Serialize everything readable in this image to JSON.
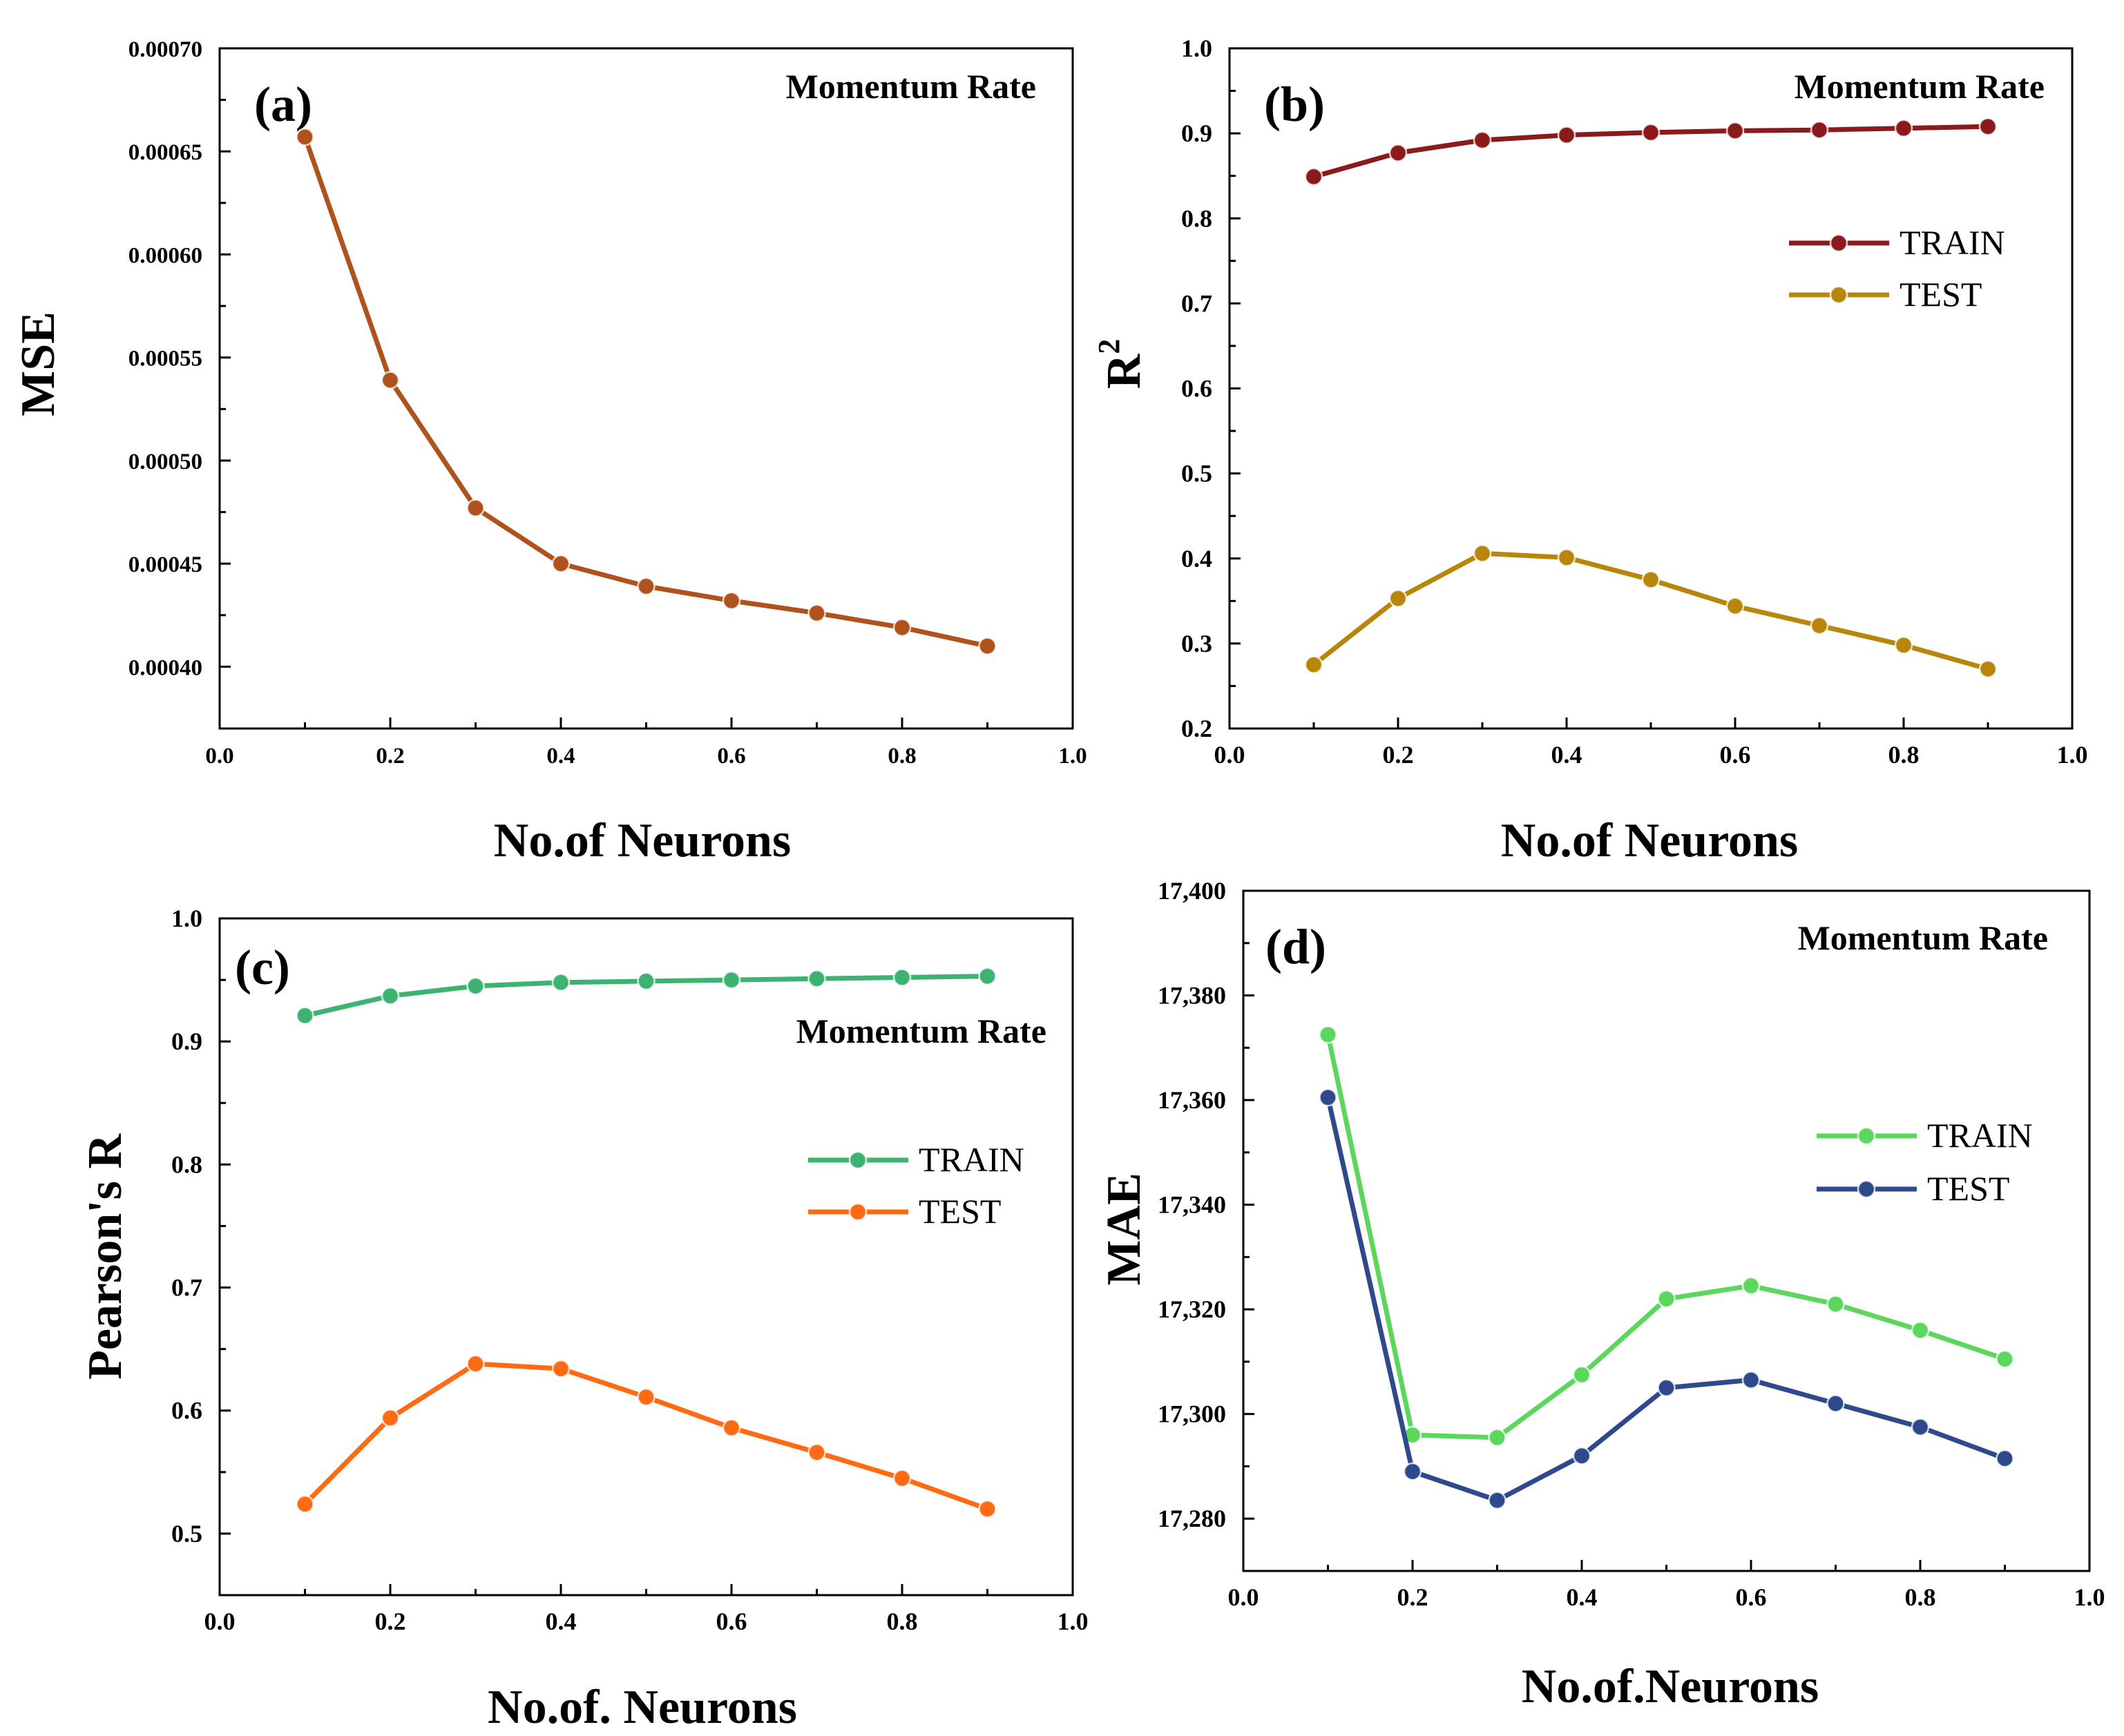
{
  "figure": {
    "title": "Momentum Rate panels"
  },
  "colors": {
    "a_line": "#b0521c",
    "b_train": "#8b1a1a",
    "b_test": "#b8860b",
    "c_train": "#3cb371",
    "c_test": "#ff6a13",
    "d_train": "#5cd65c",
    "d_test": "#2e4a8c"
  },
  "chart_data": [
    {
      "panel": "a",
      "type": "line",
      "panel_label": "(a)",
      "annotation": "Momentum Rate",
      "xlabel": "No.of Neurons",
      "ylabel": "MSE",
      "xlim": [
        0,
        1
      ],
      "ylim": [
        0.00037,
        0.0007
      ],
      "x_ticks": [
        "0.0",
        "0.2",
        "0.4",
        "0.6",
        "0.8",
        "1.0"
      ],
      "y_ticks": [
        "0.00040",
        "0.00045",
        "0.00050",
        "0.00055",
        "0.00060",
        "0.00065",
        "0.00070"
      ],
      "x": [
        0.1,
        0.2,
        0.3,
        0.4,
        0.5,
        0.6,
        0.7,
        0.8,
        0.9
      ],
      "series": [
        {
          "name": "MSE",
          "color_key": "a_line",
          "values": [
            0.000657,
            0.000539,
            0.000477,
            0.00045,
            0.000439,
            0.000432,
            0.000426,
            0.000419,
            0.00041
          ]
        }
      ],
      "legend": null
    },
    {
      "panel": "b",
      "type": "line",
      "panel_label": "(b)",
      "annotation": "Momentum Rate",
      "xlabel": "No.of Neurons",
      "ylabel": "R",
      "ylabel_sup": "2",
      "xlim": [
        0,
        1
      ],
      "ylim": [
        0.2,
        1.0
      ],
      "x_ticks": [
        "0.0",
        "0.2",
        "0.4",
        "0.6",
        "0.8",
        "1.0"
      ],
      "y_ticks": [
        "0.2",
        "0.3",
        "0.4",
        "0.5",
        "0.6",
        "0.7",
        "0.8",
        "0.9",
        "1.0"
      ],
      "x": [
        0.1,
        0.2,
        0.3,
        0.4,
        0.5,
        0.6,
        0.7,
        0.8,
        0.9
      ],
      "series": [
        {
          "name": "TRAIN",
          "color_key": "b_train",
          "values": [
            0.849,
            0.877,
            0.892,
            0.898,
            0.901,
            0.903,
            0.904,
            0.906,
            0.908
          ]
        },
        {
          "name": "TEST",
          "color_key": "b_test",
          "values": [
            0.275,
            0.353,
            0.406,
            0.401,
            0.375,
            0.344,
            0.321,
            0.298,
            0.27
          ]
        }
      ],
      "legend": "upper-right"
    },
    {
      "panel": "c",
      "type": "line",
      "panel_label": "(c)",
      "annotation": "Momentum Rate",
      "xlabel": "No.of. Neurons",
      "ylabel": "Pearson's R",
      "xlim": [
        0,
        1
      ],
      "ylim": [
        0.45,
        1.0
      ],
      "x_ticks": [
        "0.0",
        "0.2",
        "0.4",
        "0.6",
        "0.8",
        "1.0"
      ],
      "y_ticks": [
        "0.5",
        "0.6",
        "0.7",
        "0.8",
        "0.9",
        "1.0"
      ],
      "x": [
        0.1,
        0.2,
        0.3,
        0.4,
        0.5,
        0.6,
        0.7,
        0.8,
        0.9
      ],
      "series": [
        {
          "name": "TRAIN",
          "color_key": "c_train",
          "values": [
            0.921,
            0.937,
            0.945,
            0.948,
            0.949,
            0.95,
            0.951,
            0.952,
            0.953
          ]
        },
        {
          "name": "TEST",
          "color_key": "c_test",
          "values": [
            0.524,
            0.594,
            0.638,
            0.634,
            0.611,
            0.586,
            0.566,
            0.545,
            0.52
          ]
        }
      ],
      "legend": "middle-right"
    },
    {
      "panel": "d",
      "type": "line",
      "panel_label": "(d)",
      "annotation": "Momentum Rate",
      "xlabel": "No.of.Neurons",
      "ylabel": "MAE",
      "xlim": [
        0,
        1
      ],
      "ylim": [
        17270,
        17400
      ],
      "x_ticks": [
        "0.0",
        "0.2",
        "0.4",
        "0.6",
        "0.8",
        "1.0"
      ],
      "y_ticks": [
        "17,280",
        "17,300",
        "17,320",
        "17,340",
        "17,360",
        "17,380",
        "17,400"
      ],
      "x": [
        0.1,
        0.2,
        0.3,
        0.4,
        0.5,
        0.6,
        0.7,
        0.8,
        0.9
      ],
      "series": [
        {
          "name": "TRAIN",
          "color_key": "d_train",
          "values": [
            17372.5,
            17296.0,
            17295.5,
            17307.5,
            17322.0,
            17324.5,
            17321.0,
            17316.0,
            17310.5
          ]
        },
        {
          "name": "TEST",
          "color_key": "d_test",
          "values": [
            17360.5,
            17289.0,
            17283.5,
            17292.0,
            17305.0,
            17306.5,
            17302.0,
            17297.5,
            17291.5
          ]
        }
      ],
      "legend": "middle-right"
    }
  ]
}
